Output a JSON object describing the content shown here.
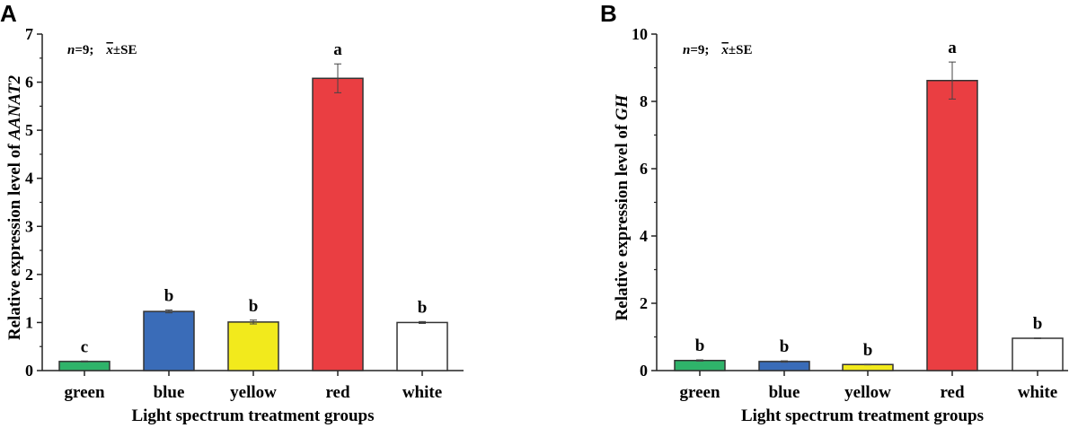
{
  "chart_data": [
    {
      "type": "bar",
      "panel_label": "A",
      "categories": [
        "green",
        "blue",
        "yellow",
        "red",
        "white"
      ],
      "values": [
        0.19,
        1.23,
        1.01,
        6.08,
        1.0
      ],
      "errors": [
        0.01,
        0.03,
        0.04,
        0.3,
        0.02
      ],
      "significance": [
        "c",
        "b",
        "b",
        "a",
        "b"
      ],
      "colors": [
        "#2fb36a",
        "#3a6cb8",
        "#f2ea1c",
        "#ea3e42",
        "#ffffff"
      ],
      "ylabel_prefix": "Relative expression level of ",
      "ylabel_gene": "AANAT2",
      "xlabel": "Light spectrum treatment groups",
      "ylim": [
        0,
        7
      ],
      "yticks": [
        0,
        1,
        2,
        3,
        4,
        5,
        6,
        7
      ],
      "note": {
        "n": "n",
        "n_value": "=9;",
        "stat": "x",
        "stat_suffix": "±SE"
      },
      "grid": false
    },
    {
      "type": "bar",
      "panel_label": "B",
      "categories": [
        "green",
        "blue",
        "yellow",
        "red",
        "white"
      ],
      "values": [
        0.3,
        0.27,
        0.18,
        8.62,
        0.96
      ],
      "errors": [
        0.02,
        0.02,
        0.01,
        0.55,
        0.01
      ],
      "significance": [
        "b",
        "b",
        "b",
        "a",
        "b"
      ],
      "colors": [
        "#2fb36a",
        "#3a6cb8",
        "#f2ea1c",
        "#ea3e42",
        "#ffffff"
      ],
      "ylabel_prefix": "Relative expression level of ",
      "ylabel_gene": "GH",
      "xlabel": "Light spectrum treatment groups",
      "ylim": [
        0,
        10
      ],
      "yticks": [
        0,
        2,
        4,
        6,
        8,
        10
      ],
      "note": {
        "n": "n",
        "n_value": "=9;",
        "stat": "x",
        "stat_suffix": "±SE"
      },
      "grid": false
    }
  ]
}
